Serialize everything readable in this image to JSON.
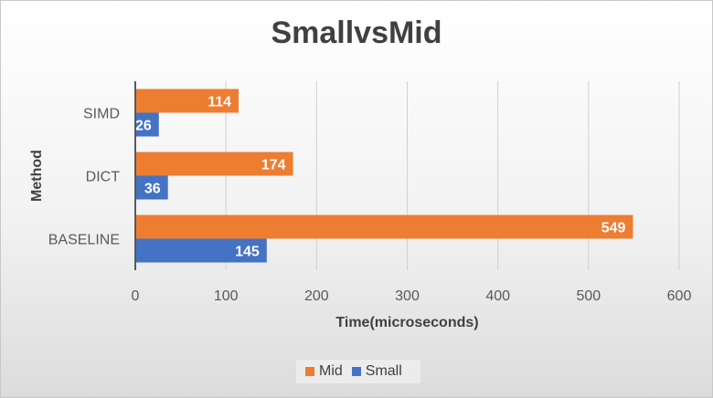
{
  "chart_data": {
    "type": "bar",
    "orientation": "horizontal",
    "title": "SmallvsMid",
    "xlabel": "Time(microseconds)",
    "ylabel": "Method",
    "categories": [
      "SIMD",
      "DICT",
      "BASELINE"
    ],
    "xlim": [
      0,
      600
    ],
    "xticks": [
      0,
      100,
      200,
      300,
      400,
      500,
      600
    ],
    "grid": true,
    "legend_position": "bottom",
    "series": [
      {
        "name": "Mid",
        "color": "#ED7D31",
        "values": [
          114,
          174,
          549
        ]
      },
      {
        "name": "Small",
        "color": "#4472C4",
        "values": [
          26,
          36,
          145
        ]
      }
    ]
  }
}
